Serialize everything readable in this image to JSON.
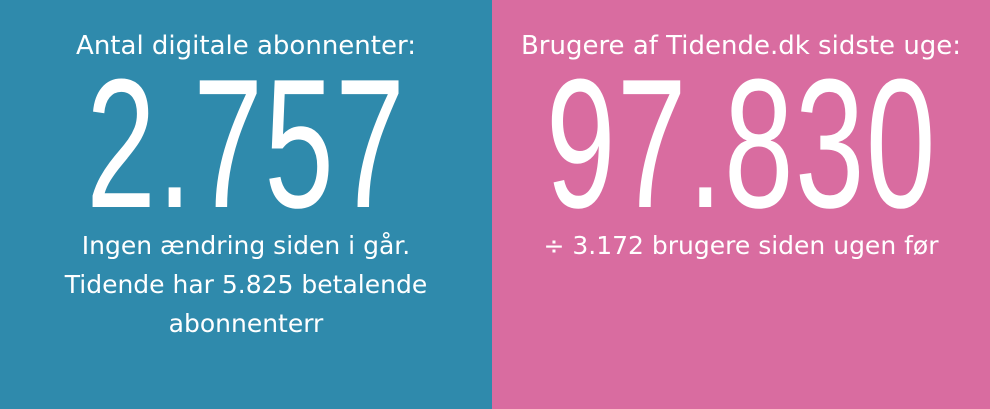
{
  "left": {
    "title": "Antal digitale abonnenter:",
    "value": "2.757",
    "lines": [
      "Ingen ændring siden i går.",
      "Tidende har 5.825 betalende",
      "abonnenterr"
    ],
    "color": "#2f8aac"
  },
  "right": {
    "title": "Brugere af Tidende.dk sidste uge:",
    "value": "97.830",
    "lines": [
      "÷ 3.172 brugere siden ugen før"
    ],
    "color": "#d96ca0"
  }
}
